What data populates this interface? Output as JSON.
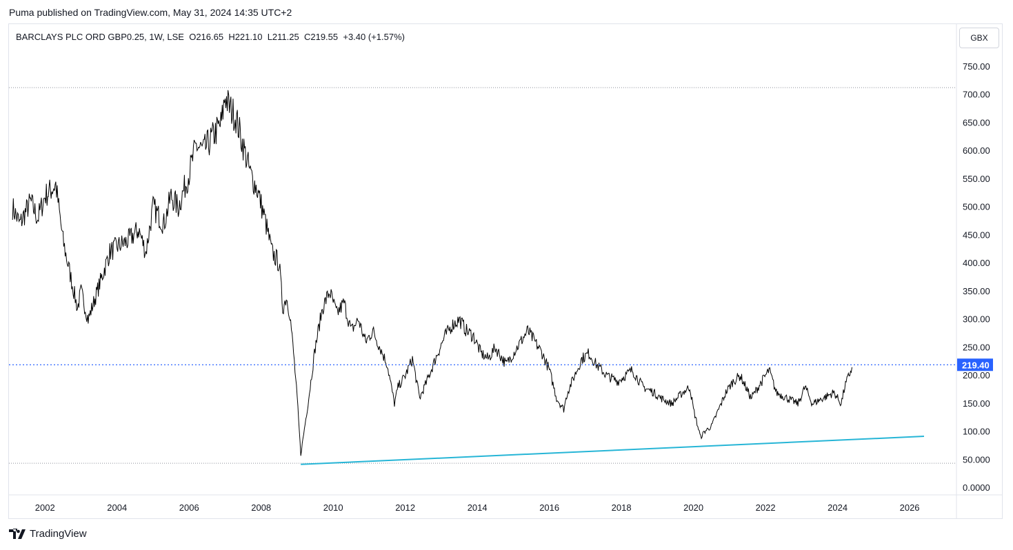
{
  "publisher": {
    "line": "Puma published on TradingView.com, May 31, 2024 14:35 UTC+2"
  },
  "legend": {
    "symbol": "BARCLAYS PLC ORD GBP0.25, 1W, LSE",
    "open": "O216.65",
    "high": "H221.10",
    "low": "L211.25",
    "close": "C219.55",
    "change": "+3.40 (+1.57%)"
  },
  "currency": "GBX",
  "brand": {
    "name": "TradingView"
  },
  "colors": {
    "price": "#000000",
    "trend": "#26b5d6",
    "price_label_bg": "#2962ff",
    "dotted": "#8a8f99"
  },
  "chart_data": {
    "type": "line",
    "series": [
      {
        "values_kind": "weekly close",
        "x": [
          2001.1,
          2001.3,
          2001.6,
          2001.8,
          2002.0,
          2002.3,
          2002.5,
          2002.7,
          2002.9,
          2003.0,
          2003.2,
          2003.5,
          2003.8,
          2004.0,
          2004.3,
          2004.6,
          2004.8,
          2005.0,
          2005.3,
          2005.5,
          2005.7,
          2006.0,
          2006.2,
          2006.4,
          2006.6,
          2006.9,
          2007.0,
          2007.1,
          2007.3,
          2007.5,
          2007.7,
          2007.9,
          2008.1,
          2008.3,
          2008.5,
          2008.6,
          2008.7,
          2008.8,
          2008.9,
          2009.0,
          2009.1,
          2009.3,
          2009.5,
          2009.7,
          2009.9,
          2010.1,
          2010.3,
          2010.5,
          2010.7,
          2010.9,
          2011.1,
          2011.3,
          2011.5,
          2011.7,
          2011.8,
          2012.0,
          2012.2,
          2012.4,
          2012.6,
          2012.9,
          2013.1,
          2013.3,
          2013.5,
          2013.7,
          2013.9,
          2014.1,
          2014.3,
          2014.5,
          2014.8,
          2015.0,
          2015.2,
          2015.4,
          2015.6,
          2015.8,
          2016.0,
          2016.2,
          2016.4,
          2016.5,
          2016.7,
          2016.9,
          2017.1,
          2017.3,
          2017.6,
          2017.9,
          2018.1,
          2018.3,
          2018.6,
          2018.9,
          2019.1,
          2019.4,
          2019.7,
          2019.9,
          2020.0,
          2020.2,
          2020.3,
          2020.5,
          2020.7,
          2020.9,
          2021.1,
          2021.3,
          2021.6,
          2021.9,
          2022.1,
          2022.3,
          2022.6,
          2022.9,
          2023.1,
          2023.3,
          2023.6,
          2023.9,
          2024.1,
          2024.2,
          2024.4
        ],
        "values": [
          500,
          470,
          510,
          480,
          520,
          540,
          440,
          380,
          320,
          350,
          300,
          360,
          420,
          430,
          440,
          460,
          420,
          500,
          470,
          520,
          500,
          560,
          610,
          600,
          620,
          650,
          700,
          680,
          660,
          610,
          560,
          530,
          480,
          420,
          400,
          320,
          340,
          310,
          240,
          160,
          60,
          150,
          250,
          320,
          350,
          310,
          330,
          280,
          300,
          260,
          280,
          250,
          220,
          150,
          180,
          200,
          230,
          160,
          190,
          240,
          270,
          290,
          300,
          280,
          270,
          240,
          230,
          250,
          220,
          240,
          260,
          280,
          260,
          240,
          210,
          160,
          140,
          170,
          200,
          230,
          240,
          220,
          200,
          190,
          200,
          210,
          180,
          170,
          160,
          150,
          170,
          180,
          140,
          90,
          100,
          110,
          140,
          170,
          190,
          200,
          160,
          190,
          210,
          170,
          160,
          150,
          180,
          150,
          160,
          170,
          150,
          180,
          215
        ],
        "name": ""
      },
      {
        "values_kind": "trendline",
        "x": [
          2009.1,
          2026.4
        ],
        "values": [
          42,
          92
        ],
        "name": ""
      }
    ],
    "title": "",
    "xlabel": "",
    "ylabel": "",
    "x_ticks": [
      "2002",
      "2004",
      "2006",
      "2008",
      "2010",
      "2012",
      "2014",
      "2016",
      "2018",
      "2020",
      "2022",
      "2024",
      "2026"
    ],
    "y_ticks": [
      "0.0000",
      "50.000",
      "100.00",
      "150.00",
      "200.00",
      "250.00",
      "300.00",
      "350.00",
      "400.00",
      "450.00",
      "500.00",
      "550.00",
      "600.00",
      "650.00",
      "700.00",
      "750.00"
    ],
    "xlim": [
      2001.0,
      2027.3
    ],
    "ylim": [
      -10,
      770
    ],
    "last_price": "219.40",
    "horizontal_levels": [
      219.4,
      713,
      44
    ],
    "grid": false
  }
}
